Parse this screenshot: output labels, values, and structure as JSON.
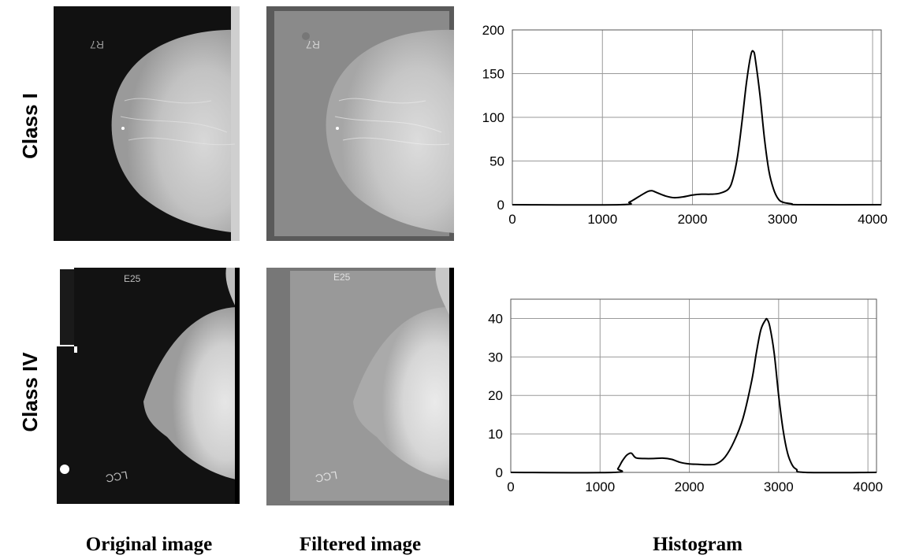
{
  "row_labels": [
    "Class I",
    "Class IV"
  ],
  "column_labels": {
    "original": "Original image",
    "filtered": "Filtered image",
    "histogram": "Histogram"
  },
  "film_markers": {
    "class_i": "R7",
    "class_iv_top": "E25",
    "class_iv_bottom": "LCC"
  },
  "colors": {
    "line": "#000000",
    "grid": "#9a9a9a",
    "dark_background": "#101010",
    "filtered_background": "#7a7a7a"
  },
  "chart_data": [
    {
      "type": "line",
      "title": "",
      "xlabel": "",
      "ylabel": "",
      "xlim": [
        0,
        4096
      ],
      "ylim": [
        0,
        200
      ],
      "grid": true,
      "xticks": [
        0,
        1000,
        2000,
        3000,
        4000
      ],
      "yticks": [
        0,
        50,
        100,
        150,
        200
      ],
      "x": [
        0,
        1200,
        1300,
        1400,
        1500,
        1550,
        1600,
        1700,
        1800,
        1900,
        2000,
        2100,
        2200,
        2300,
        2400,
        2450,
        2500,
        2550,
        2600,
        2650,
        2680,
        2700,
        2750,
        2800,
        2850,
        2900,
        2950,
        3000,
        3100,
        3200,
        4096
      ],
      "y": [
        0,
        0,
        3,
        9,
        15,
        16,
        14,
        10,
        8,
        9,
        11,
        12,
        12,
        13,
        18,
        30,
        55,
        95,
        140,
        172,
        175,
        165,
        125,
        75,
        38,
        18,
        7,
        3,
        1,
        0,
        0
      ]
    },
    {
      "type": "line",
      "title": "",
      "xlabel": "",
      "ylabel": "",
      "xlim": [
        0,
        4096
      ],
      "ylim": [
        0,
        45
      ],
      "grid": true,
      "xticks": [
        0,
        1000,
        2000,
        3000,
        4000
      ],
      "yticks": [
        0,
        10,
        20,
        30,
        40
      ],
      "x": [
        0,
        1150,
        1200,
        1250,
        1300,
        1350,
        1400,
        1500,
        1600,
        1700,
        1800,
        1900,
        2000,
        2100,
        2200,
        2300,
        2400,
        2500,
        2600,
        2700,
        2750,
        2800,
        2850,
        2870,
        2900,
        2950,
        3000,
        3050,
        3100,
        3150,
        3200,
        3300,
        4096
      ],
      "y": [
        0,
        0,
        1,
        3,
        4.5,
        5,
        3.8,
        3.6,
        3.6,
        3.7,
        3.4,
        2.6,
        2.2,
        2.1,
        2.0,
        2.2,
        4,
        8,
        14,
        24,
        31,
        37,
        39.5,
        39.8,
        38,
        31,
        20,
        11,
        5,
        2,
        0.8,
        0,
        0
      ]
    }
  ]
}
